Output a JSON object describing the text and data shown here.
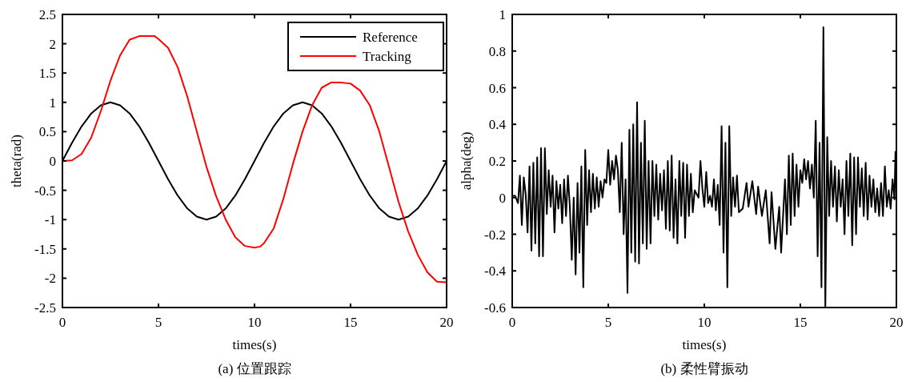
{
  "chart_data": [
    {
      "type": "line",
      "title": "(a)  位置跟踪",
      "xlabel": "times(s)",
      "ylabel": "theta(rad)",
      "xlim": [
        0,
        20
      ],
      "ylim": [
        -2.5,
        2.5
      ],
      "xticks": [
        0,
        5,
        10,
        15,
        20
      ],
      "yticks": [
        -2.5,
        -2,
        -1.5,
        -1,
        -0.5,
        0,
        0.5,
        1,
        1.5,
        2,
        2.5
      ],
      "legend": "top right",
      "grid": false,
      "series": [
        {
          "name": "Reference",
          "color": "#000000",
          "x": [
            0,
            0.5,
            1,
            1.5,
            2,
            2.5,
            3,
            3.5,
            4,
            4.5,
            5,
            5.5,
            6,
            6.5,
            7,
            7.5,
            8,
            8.5,
            9,
            9.5,
            10,
            10.5,
            11,
            11.5,
            12,
            12.5,
            13,
            13.5,
            14,
            14.5,
            15,
            15.5,
            16,
            16.5,
            17,
            17.5,
            18,
            18.5,
            19,
            19.5,
            20
          ],
          "values": [
            0,
            0.31,
            0.59,
            0.81,
            0.95,
            1,
            0.95,
            0.81,
            0.59,
            0.31,
            0,
            -0.31,
            -0.59,
            -0.81,
            -0.95,
            -1,
            -0.95,
            -0.81,
            -0.59,
            -0.31,
            0,
            0.31,
            0.59,
            0.81,
            0.95,
            1,
            0.95,
            0.81,
            0.59,
            0.31,
            0,
            -0.31,
            -0.59,
            -0.81,
            -0.95,
            -1,
            -0.95,
            -0.81,
            -0.59,
            -0.31,
            0
          ]
        },
        {
          "name": "Tracking",
          "color": "#ff0000",
          "x": [
            0,
            0.5,
            1,
            1.5,
            2,
            2.5,
            3,
            3.5,
            4,
            4.5,
            4.8,
            5,
            5.5,
            6,
            6.5,
            7,
            7.5,
            8,
            8.5,
            9,
            9.5,
            10,
            10.3,
            10.5,
            11,
            11.5,
            12,
            12.5,
            13,
            13.5,
            14,
            14.5,
            15,
            15.5,
            16,
            16.5,
            17,
            17.5,
            18,
            18.5,
            19,
            19.5,
            20
          ],
          "values": [
            0,
            0.01,
            0.12,
            0.4,
            0.85,
            1.37,
            1.8,
            2.07,
            2.13,
            2.13,
            2.13,
            2.08,
            1.93,
            1.6,
            1.1,
            0.5,
            -0.1,
            -0.6,
            -1,
            -1.3,
            -1.45,
            -1.48,
            -1.46,
            -1.4,
            -1.15,
            -0.65,
            -0.05,
            0.5,
            0.95,
            1.25,
            1.34,
            1.34,
            1.32,
            1.2,
            0.95,
            0.5,
            -0.1,
            -0.7,
            -1.2,
            -1.6,
            -1.9,
            -2.06,
            -2.07
          ]
        }
      ]
    },
    {
      "type": "line",
      "title": "(b)  柔性臂振动",
      "xlabel": "times(s)",
      "ylabel": "alpha(deg)",
      "xlim": [
        0,
        20
      ],
      "ylim": [
        -0.6,
        1
      ],
      "xticks": [
        0,
        5,
        10,
        15,
        20
      ],
      "yticks": [
        -0.6,
        -0.4,
        -0.2,
        0,
        0.2,
        0.4,
        0.6,
        0.8,
        1
      ],
      "grid": false,
      "series": [
        {
          "color": "#000000",
          "x": [
            0,
            0.15,
            0.3,
            0.4,
            0.5,
            0.6,
            0.7,
            0.8,
            0.9,
            1.0,
            1.1,
            1.2,
            1.3,
            1.4,
            1.5,
            1.6,
            1.7,
            1.8,
            1.9,
            2.0,
            2.1,
            2.2,
            2.3,
            2.4,
            2.5,
            2.6,
            2.7,
            2.8,
            2.9,
            3.0,
            3.1,
            3.2,
            3.3,
            3.4,
            3.5,
            3.6,
            3.7,
            3.8,
            3.9,
            4.0,
            4.1,
            4.2,
            4.3,
            4.4,
            4.5,
            4.6,
            4.7,
            4.8,
            4.9,
            5.0,
            5.1,
            5.2,
            5.3,
            5.4,
            5.5,
            5.6,
            5.7,
            5.8,
            5.9,
            6.0,
            6.1,
            6.2,
            6.3,
            6.4,
            6.5,
            6.6,
            6.7,
            6.8,
            6.9,
            7.0,
            7.1,
            7.2,
            7.3,
            7.4,
            7.5,
            7.6,
            7.7,
            7.8,
            7.9,
            8.0,
            8.1,
            8.2,
            8.3,
            8.4,
            8.5,
            8.6,
            8.7,
            8.8,
            8.9,
            9.0,
            9.1,
            9.2,
            9.3,
            9.4,
            9.5,
            9.6,
            9.7,
            9.8,
            9.9,
            10.0,
            10.1,
            10.2,
            10.3,
            10.4,
            10.5,
            10.6,
            10.7,
            10.8,
            10.9,
            11.0,
            11.1,
            11.2,
            11.3,
            11.4,
            11.5,
            11.6,
            11.7,
            11.8,
            12.0,
            12.2,
            12.3,
            12.5,
            12.7,
            12.8,
            13.0,
            13.2,
            13.4,
            13.5,
            13.7,
            13.9,
            14.0,
            14.2,
            14.3,
            14.4,
            14.5,
            14.6,
            14.7,
            14.8,
            14.9,
            15.0,
            15.1,
            15.2,
            15.3,
            15.4,
            15.5,
            15.6,
            15.7,
            15.8,
            15.9,
            16.0,
            16.1,
            16.2,
            16.3,
            16.4,
            16.5,
            16.6,
            16.7,
            16.8,
            16.9,
            17.0,
            17.1,
            17.2,
            17.3,
            17.4,
            17.5,
            17.6,
            17.7,
            17.8,
            17.9,
            18.0,
            18.1,
            18.2,
            18.3,
            18.4,
            18.5,
            18.6,
            18.7,
            18.8,
            18.9,
            19.0,
            19.1,
            19.2,
            19.3,
            19.4,
            19.5,
            19.6,
            19.7,
            19.8,
            19.9,
            19.95,
            20
          ],
          "values": [
            0.01,
            0.01,
            -0.03,
            0.12,
            -0.15,
            0.11,
            0.02,
            -0.19,
            0.17,
            -0.29,
            0.19,
            -0.25,
            0.22,
            -0.32,
            0.27,
            -0.32,
            0.27,
            -0.09,
            0.15,
            -0.05,
            0.12,
            -0.19,
            0.09,
            -0.06,
            0.07,
            -0.14,
            0.1,
            -0.1,
            0.12,
            -0.05,
            -0.34,
            0,
            -0.42,
            0.08,
            -0.3,
            0.17,
            -0.49,
            0.26,
            -0.15,
            0.15,
            -0.08,
            0.13,
            -0.06,
            0.11,
            -0.05,
            0.09,
            0,
            0.1,
            0.08,
            0.26,
            0.07,
            0.2,
            0.1,
            0.23,
            0.15,
            -0.08,
            0.3,
            -0.2,
            0.1,
            -0.52,
            0.37,
            -0.3,
            0.4,
            -0.35,
            0.52,
            -0.36,
            0.3,
            -0.25,
            0.42,
            -0.28,
            0.2,
            -0.25,
            0.2,
            -0.1,
            0.18,
            -0.12,
            0.13,
            -0.07,
            0.15,
            -0.17,
            0.2,
            -0.18,
            0.23,
            -0.22,
            0.1,
            -0.25,
            0.2,
            -0.1,
            0.19,
            -0.22,
            0.18,
            -0.1,
            0.13,
            -0.08,
            0.04,
            0.02,
            0,
            0.2,
            0.05,
            -0.05,
            0.14,
            -0.03,
            0.01,
            -0.05,
            0.1,
            -0.07,
            0.07,
            -0.15,
            0.39,
            -0.3,
            0.3,
            -0.49,
            0.39,
            -0.1,
            0.11,
            -0.05,
            0.12,
            -0.08,
            -0.06,
            0.08,
            -0.05,
            0.09,
            -0.09,
            0.06,
            -0.1,
            0.04,
            -0.25,
            0.03,
            -0.28,
            -0.05,
            -0.3,
            0.1,
            -0.2,
            0.23,
            -0.15,
            0.24,
            -0.1,
            0.18,
            -0.05,
            0.15,
            0.08,
            0.21,
            0.1,
            0.2,
            0.05,
            0.18,
            0,
            0.42,
            -0.32,
            0.3,
            -0.49,
            0.93,
            -0.6,
            0.33,
            -0.1,
            0.2,
            -0.05,
            0.17,
            -0.13,
            0.15,
            -0.05,
            0.1,
            -0.2,
            0.2,
            -0.1,
            0.24,
            -0.26,
            0.22,
            -0.2,
            0.22,
            -0.05,
            0.16,
            -0.1,
            0.19,
            -0.12,
            0.12,
            -0.05,
            0.1,
            -0.08,
            0.05,
            -0.1,
            0.08,
            -0.1,
            0.17,
            -0.05,
            0.04,
            -0.06,
            0.1,
            -0.01,
            0.25,
            0.2
          ]
        }
      ]
    }
  ]
}
